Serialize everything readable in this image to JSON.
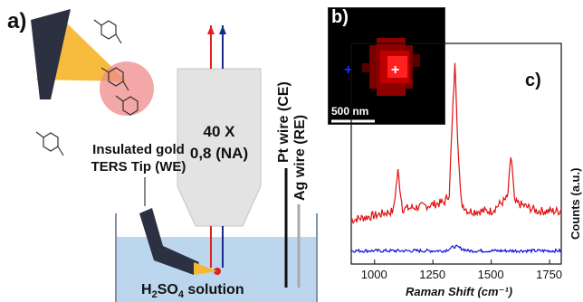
{
  "panels": {
    "a_label": "a)",
    "b_label": "b)",
    "c_label": "c)"
  },
  "schematic": {
    "tip_label_line1": "Insulated gold",
    "tip_label_line2": "TERS Tip (WE)",
    "objective_line1": "40 X",
    "objective_line2": "0,8 (NA)",
    "pt_wire": "Pt wire (CE)",
    "ag_wire": "Ag wire (RE)",
    "solution_prefix": "H",
    "solution_sub1": "2",
    "solution_mid": "SO",
    "solution_sub2": "4",
    "solution_suffix": " solution",
    "colors": {
      "tip_body": "#2b3140",
      "light_cone": "#f7b733",
      "hotspot": "#f08a8a",
      "objective": "#e3e3e3",
      "liquid": "#bcd6ee",
      "red_beam": "#e02020",
      "blue_beam": "#1a2a8a"
    }
  },
  "map": {
    "scale_bar_text": "500 nm",
    "colors": {
      "background": "#000000",
      "signal": "#ff2020",
      "marker_blue": "#1a33ff",
      "marker_white": "#ffffff"
    }
  },
  "chart_data": {
    "type": "line",
    "xlabel": "Raman Shift (cm⁻¹)",
    "ylabel": "Counts (a.u.)",
    "xlim": [
      900,
      1800
    ],
    "x_ticks": [
      "1000",
      "1250",
      "1500",
      "1750"
    ],
    "series": [
      {
        "color": "#e01010",
        "x": [
          900,
          1000,
          1080,
          1100,
          1120,
          1200,
          1300,
          1320,
          1335,
          1345,
          1355,
          1370,
          1400,
          1500,
          1570,
          1585,
          1600,
          1700,
          1800
        ],
        "y": [
          0.2,
          0.22,
          0.24,
          0.42,
          0.25,
          0.26,
          0.28,
          0.32,
          0.7,
          0.92,
          0.6,
          0.28,
          0.24,
          0.24,
          0.3,
          0.5,
          0.28,
          0.24,
          0.24
        ]
      },
      {
        "color": "#1010e0",
        "x": [
          900,
          1000,
          1100,
          1200,
          1300,
          1345,
          1400,
          1500,
          1600,
          1700,
          1800
        ],
        "y": [
          0.06,
          0.06,
          0.06,
          0.06,
          0.06,
          0.08,
          0.06,
          0.06,
          0.06,
          0.06,
          0.06
        ]
      }
    ]
  }
}
